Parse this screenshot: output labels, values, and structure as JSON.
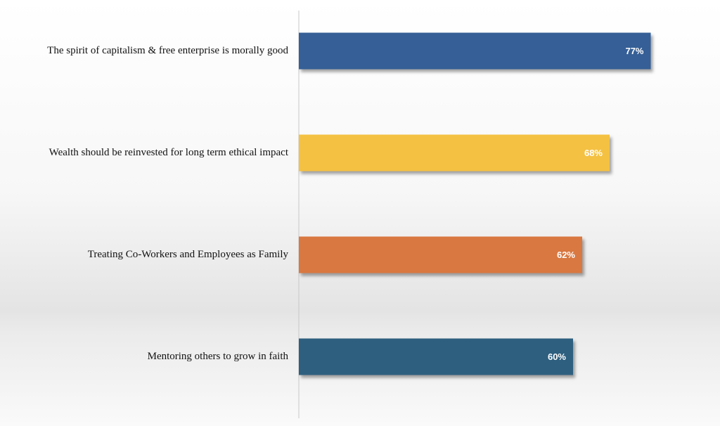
{
  "chart_data": {
    "type": "barh",
    "categories": [
      "The spirit of capitalism & free enterprise is morally good",
      "Wealth should be reinvested for long term ethical impact",
      "Treating Co-Workers and Employees as Family",
      "Mentoring others to grow in faith"
    ],
    "values": [
      77,
      68,
      62,
      60
    ],
    "value_labels": [
      "77%",
      "68%",
      "62%",
      "60%"
    ],
    "colors": [
      "#365f96",
      "#f4c142",
      "#d97841",
      "#2e5f7f"
    ],
    "xlim": [
      0,
      80
    ]
  }
}
